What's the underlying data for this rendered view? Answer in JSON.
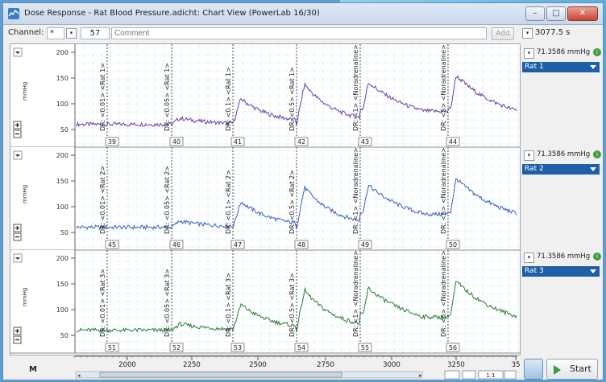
{
  "window": {
    "title": "Dose Response - Rat Blood Pressure.adicht: Chart View (PowerLab 16/30)"
  },
  "toolbar": {
    "channel_label": "Channel:",
    "channel_value": "*",
    "comment_number": "57",
    "comment_placeholder": "Comment",
    "add_label": "Add",
    "duration": "3077.5 s"
  },
  "channels": [
    {
      "unit": "mmHg",
      "value": "71.3586 mmHg",
      "name": "Rat 1",
      "color": "#6a3da8",
      "markers": [
        "39",
        "40",
        "41",
        "42",
        "43",
        "44"
      ]
    },
    {
      "unit": "mmHg",
      "value": "71.3586 mmHg",
      "name": "Rat 2",
      "color": "#3a5fbf",
      "markers": [
        "45",
        "46",
        "47",
        "48",
        "49",
        "50"
      ]
    },
    {
      "unit": "mmHg",
      "value": "71.3586 mmHg",
      "name": "Rat 3",
      "color": "#2f7a35",
      "markers": [
        "51",
        "52",
        "53",
        "54",
        "55",
        "56"
      ]
    }
  ],
  "yticks": [
    "200",
    "150",
    "100",
    "50"
  ],
  "xticks": [
    "2000",
    "2250",
    "2500",
    "2750",
    "3000",
    "3250",
    "35"
  ],
  "dose_comments": [
    [
      "DR: <0.01> <Rat 1>",
      "DR: <0.05> <Rat 1>",
      "DR: <0.1> <Rat 1>",
      "DR: <0.5> <Rat 1>",
      "DR: <1> <Noradrenaline>",
      "DR: <5> <Noradrenaline>"
    ],
    [
      "DR: <0.01> <Rat 2>",
      "DR: <0.05> <Rat 2>",
      "DR: <0.1> <Rat 2>",
      "DR: <0.5> <Rat 2>",
      "DR: <1> <Noradrenaline>",
      "DR: <5> <Noradrenaline>"
    ],
    [
      "DR: <0.01> <Rat 3>",
      "DR: <0.05> <Rat 3>",
      "DR: <0.1> <Rat 3>",
      "DR: <0.5> <Rat 3>",
      "DR: <1> <Noradrenaline>",
      "DR: <5> <Noradrenaline>"
    ]
  ],
  "bottom": {
    "zoom": "1:1",
    "start_label": "Start"
  },
  "colors": {
    "accent": "#1e5fa8",
    "rat1": "#6a3da8",
    "rat2": "#3a5fbf",
    "rat3": "#2f7a35"
  }
}
